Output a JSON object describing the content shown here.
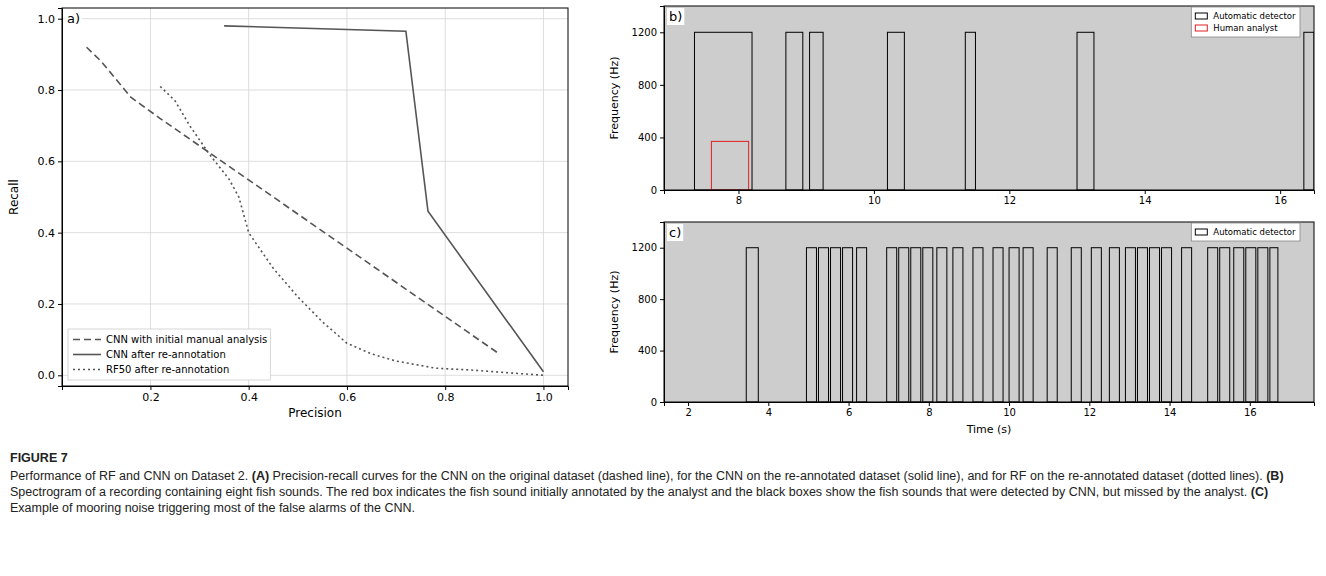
{
  "chart_data": [
    {
      "type": "line",
      "panel_label": "a)",
      "xlabel": "Precision",
      "ylabel": "Recall",
      "xlim": [
        0.02,
        1.05
      ],
      "ylim": [
        -0.03,
        1.03
      ],
      "xticks": [
        0.2,
        0.4,
        0.6,
        0.8,
        {
          "value": 1,
          "label": "1.0"
        }
      ],
      "yticks": [
        {
          "value": 0,
          "label": "0.0"
        },
        0.2,
        0.4,
        0.6,
        0.8,
        {
          "value": 1,
          "label": "1.0"
        }
      ],
      "grid": true,
      "legend": "lower left",
      "series": [
        {
          "name": "CNN with initial manual analysis",
          "color": "#555555",
          "line_style": "dashed",
          "x": [
            0.07,
            0.1,
            0.13,
            0.16,
            0.18,
            0.22,
            0.91
          ],
          "values": [
            0.92,
            0.88,
            0.83,
            0.78,
            0.76,
            0.72,
            0.06
          ]
        },
        {
          "name": "CNN after re-annotation",
          "color": "#555555",
          "line_style": "solid",
          "x": [
            0.35,
            0.72,
            0.765,
            1.0
          ],
          "values": [
            0.98,
            0.965,
            0.46,
            0.01
          ]
        },
        {
          "name": "RF50 after re-annotation",
          "color": "#555555",
          "line_style": "dotted",
          "x": [
            0.22,
            0.25,
            0.28,
            0.32,
            0.36,
            0.38,
            0.4,
            0.45,
            0.5,
            0.55,
            0.6,
            0.65,
            0.7,
            0.78,
            0.85,
            0.95,
            1.0
          ],
          "values": [
            0.81,
            0.77,
            0.7,
            0.62,
            0.55,
            0.5,
            0.4,
            0.3,
            0.22,
            0.15,
            0.09,
            0.06,
            0.04,
            0.02,
            0.015,
            0.005,
            0.0
          ]
        }
      ]
    },
    {
      "type": "spectrogram",
      "panel_label": "b)",
      "ylabel": "Frequency (Hz)",
      "xlim": [
        6.9,
        16.5
      ],
      "ylim": [
        0,
        1400
      ],
      "xticks": [
        8,
        10,
        12,
        14,
        16
      ],
      "yticks": [
        0,
        400,
        800,
        1200
      ],
      "grid": false,
      "legend": "upper right",
      "series": [
        {
          "name": "Automatic detector",
          "color": "#000000",
          "x_start": [
            7.35,
            8.7,
            9.05,
            10.2,
            11.35,
            13.0,
            16.35
          ],
          "x_end": [
            8.2,
            8.95,
            9.25,
            10.45,
            11.5,
            13.25,
            16.5
          ],
          "y_low": [
            0,
            0,
            0,
            0,
            0,
            0,
            0
          ],
          "y_high": [
            1200,
            1200,
            1200,
            1200,
            1200,
            1200,
            1200
          ]
        },
        {
          "name": "Human analyst",
          "color": "#e02020",
          "x_start": [
            7.6
          ],
          "x_end": [
            8.15
          ],
          "y_low": [
            0
          ],
          "y_high": [
            370
          ]
        }
      ]
    },
    {
      "type": "spectrogram",
      "panel_label": "c)",
      "xlabel": "Time (s)",
      "ylabel": "Frequency (Hz)",
      "xlim": [
        1.4,
        17.6
      ],
      "ylim": [
        0,
        1400
      ],
      "xticks": [
        2,
        4,
        6,
        8,
        10,
        12,
        14,
        16
      ],
      "yticks": [
        0,
        400,
        800,
        1200
      ],
      "grid": false,
      "legend": "upper right",
      "series": [
        {
          "name": "Automatic detector",
          "color": "#000000",
          "x_start": [
            3.45,
            4.95,
            5.25,
            5.55,
            5.85,
            6.2,
            6.95,
            7.25,
            7.55,
            7.85,
            8.2,
            8.6,
            9.1,
            9.6,
            10.0,
            10.35,
            10.95,
            11.55,
            12.05,
            12.5,
            12.9,
            13.2,
            13.5,
            13.8,
            14.3,
            14.95,
            15.25,
            15.6,
            15.9,
            16.2,
            16.5
          ],
          "x_end": [
            3.75,
            5.2,
            5.5,
            5.8,
            6.1,
            6.45,
            7.2,
            7.5,
            7.8,
            8.1,
            8.45,
            8.85,
            9.35,
            9.85,
            10.25,
            10.6,
            11.2,
            11.8,
            12.3,
            12.75,
            13.15,
            13.45,
            13.75,
            14.05,
            14.55,
            15.2,
            15.5,
            15.85,
            16.15,
            16.45,
            16.7
          ],
          "y_low": [
            0,
            0,
            0,
            0,
            0,
            0,
            0,
            0,
            0,
            0,
            0,
            0,
            0,
            0,
            0,
            0,
            0,
            0,
            0,
            0,
            0,
            0,
            0,
            0,
            0,
            0,
            0,
            0,
            0,
            0,
            0
          ],
          "y_high": [
            1200,
            1200,
            1200,
            1200,
            1200,
            1200,
            1200,
            1200,
            1200,
            1200,
            1200,
            1200,
            1200,
            1200,
            1200,
            1200,
            1200,
            1200,
            1200,
            1200,
            1200,
            1200,
            1200,
            1200,
            1200,
            1200,
            1200,
            1200,
            1200,
            1200,
            1200
          ]
        }
      ]
    }
  ],
  "figure": {
    "label": "FIGURE 7",
    "caption": "Performance of RF and CNN on Dataset 2. (A) Precision-recall curves for the CNN on the original dataset (dashed line), for the CNN on the re-annotated dataset (solid line), and for RF on the re-annotated dataset (dotted lines). (B) Spectrogram of a recording containing eight fish sounds. The red box indicates the fish sound initially annotated by the analyst and the black boxes show the fish sounds that were detected by CNN, but missed by the analyst. (C) Example of mooring noise triggering most of the false alarms of the CNN."
  }
}
